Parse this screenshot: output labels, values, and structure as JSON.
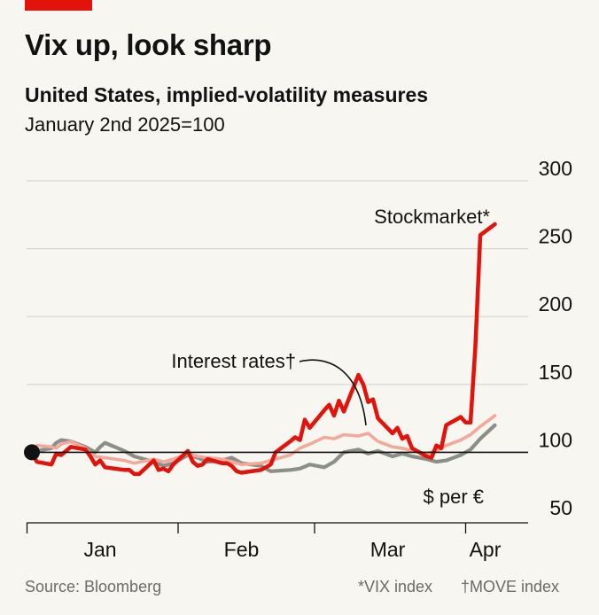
{
  "header": {
    "title": "Vix up, look sharp",
    "subtitle": "United States, implied-volatility measures",
    "index_note": "January 2nd 2025=100"
  },
  "footer": {
    "source": "Source: Bloomberg",
    "note_vix": "*VIX index",
    "note_move": "†MOVE index"
  },
  "colors": {
    "stockmarket": "#e3120b",
    "interest_rates": "#f4a899",
    "dollar_per_euro": "#8a9087",
    "baseline": "#121212",
    "gridline": "#d6d6d0",
    "brand_tag": "#e3120b"
  },
  "chart_data": {
    "type": "line",
    "xlabel": "",
    "ylabel": "",
    "x_tick_labels": [
      "Jan",
      "Feb",
      "Mar",
      "Apr"
    ],
    "x_range": [
      "2025-01-02",
      "2025-04-08"
    ],
    "ylim": [
      50,
      300
    ],
    "yticks": [
      50,
      100,
      150,
      200,
      250,
      300
    ],
    "y_axis_side": "right",
    "grid": true,
    "baseline_value": 100,
    "start_marker_value": 100,
    "series": [
      {
        "name": "Stockmarket*",
        "color": "#e3120b",
        "points": [
          [
            "2025-01-02",
            100
          ],
          [
            "2025-01-03",
            93
          ],
          [
            "2025-01-06",
            91
          ],
          [
            "2025-01-07",
            99
          ],
          [
            "2025-01-08",
            98
          ],
          [
            "2025-01-10",
            104
          ],
          [
            "2025-01-13",
            102
          ],
          [
            "2025-01-14",
            97
          ],
          [
            "2025-01-15",
            91
          ],
          [
            "2025-01-16",
            94
          ],
          [
            "2025-01-17",
            89
          ],
          [
            "2025-01-21",
            87
          ],
          [
            "2025-01-22",
            87
          ],
          [
            "2025-01-23",
            84
          ],
          [
            "2025-01-24",
            84
          ],
          [
            "2025-01-27",
            94
          ],
          [
            "2025-01-28",
            87
          ],
          [
            "2025-01-29",
            88
          ],
          [
            "2025-01-30",
            86
          ],
          [
            "2025-01-31",
            91
          ],
          [
            "2025-02-03",
            101
          ],
          [
            "2025-02-04",
            93
          ],
          [
            "2025-02-05",
            90
          ],
          [
            "2025-02-06",
            91
          ],
          [
            "2025-02-07",
            95
          ],
          [
            "2025-02-10",
            92
          ],
          [
            "2025-02-11",
            92
          ],
          [
            "2025-02-12",
            90
          ],
          [
            "2025-02-13",
            86
          ],
          [
            "2025-02-14",
            85
          ],
          [
            "2025-02-18",
            87
          ],
          [
            "2025-02-19",
            89
          ],
          [
            "2025-02-20",
            91
          ],
          [
            "2025-02-21",
            100
          ],
          [
            "2025-02-24",
            108
          ],
          [
            "2025-02-25",
            111
          ],
          [
            "2025-02-26",
            109
          ],
          [
            "2025-02-27",
            124
          ],
          [
            "2025-02-28",
            118
          ],
          [
            "2025-03-03",
            131
          ],
          [
            "2025-03-04",
            135
          ],
          [
            "2025-03-05",
            127
          ],
          [
            "2025-03-06",
            138
          ],
          [
            "2025-03-07",
            130
          ],
          [
            "2025-03-10",
            157
          ],
          [
            "2025-03-11",
            150
          ],
          [
            "2025-03-12",
            137
          ],
          [
            "2025-03-13,",
            139
          ],
          [
            "2025-03-14",
            125
          ],
          [
            "2025-03-17",
            114
          ],
          [
            "2025-03-18",
            118
          ],
          [
            "2025-03-19",
            110
          ],
          [
            "2025-03-20",
            112
          ],
          [
            "2025-03-21",
            103
          ],
          [
            "2025-03-24",
            97
          ],
          [
            "2025-03-25",
            96
          ],
          [
            "2025-03-26",
            105
          ],
          [
            "2025-03-27",
            103
          ],
          [
            "2025-03-28",
            120
          ],
          [
            "2025-03-31",
            126
          ],
          [
            "2025-04-01",
            122
          ],
          [
            "2025-04-02",
            122
          ],
          [
            "2025-04-03",
            178
          ],
          [
            "2025-04-04",
            260
          ],
          [
            "2025-04-07",
            268
          ]
        ]
      },
      {
        "name": "Interest rates†",
        "color": "#f4a899",
        "points": [
          [
            "2025-01-02",
            100
          ],
          [
            "2025-01-03",
            105
          ],
          [
            "2025-01-06",
            104
          ],
          [
            "2025-01-07",
            103
          ],
          [
            "2025-01-08",
            106
          ],
          [
            "2025-01-10",
            108
          ],
          [
            "2025-01-13",
            103
          ],
          [
            "2025-01-14",
            99
          ],
          [
            "2025-01-15",
            97
          ],
          [
            "2025-01-17",
            96
          ],
          [
            "2025-01-21",
            94
          ],
          [
            "2025-01-23",
            92
          ],
          [
            "2025-01-27",
            95
          ],
          [
            "2025-01-29",
            93
          ],
          [
            "2025-01-31",
            95
          ],
          [
            "2025-02-03",
            99
          ],
          [
            "2025-02-05",
            97
          ],
          [
            "2025-02-07",
            96
          ],
          [
            "2025-02-10",
            95
          ],
          [
            "2025-02-12",
            93
          ],
          [
            "2025-02-14",
            91
          ],
          [
            "2025-02-18",
            92
          ],
          [
            "2025-02-20",
            94
          ],
          [
            "2025-02-24",
            98
          ],
          [
            "2025-02-26",
            103
          ],
          [
            "2025-02-28",
            106
          ],
          [
            "2025-03-03",
            111
          ],
          [
            "2025-03-05",
            110
          ],
          [
            "2025-03-07",
            113
          ],
          [
            "2025-03-10",
            112
          ],
          [
            "2025-03-12",
            114
          ],
          [
            "2025-03-14",
            108
          ],
          [
            "2025-03-17",
            104
          ],
          [
            "2025-03-19",
            103
          ],
          [
            "2025-03-21",
            101
          ],
          [
            "2025-03-24",
            99
          ],
          [
            "2025-03-26",
            101
          ],
          [
            "2025-03-28",
            105
          ],
          [
            "2025-03-31",
            109
          ],
          [
            "2025-04-02",
            113
          ],
          [
            "2025-04-04",
            119
          ],
          [
            "2025-04-07",
            127
          ]
        ]
      },
      {
        "name": "$ per €",
        "color": "#8a9087",
        "points": [
          [
            "2025-01-02",
            100
          ],
          [
            "2025-01-03",
            101
          ],
          [
            "2025-01-06",
            103
          ],
          [
            "2025-01-07",
            107
          ],
          [
            "2025-01-08",
            109
          ],
          [
            "2025-01-10",
            108
          ],
          [
            "2025-01-13",
            104
          ],
          [
            "2025-01-14",
            102
          ],
          [
            "2025-01-15",
            100
          ],
          [
            "2025-01-16",
            104
          ],
          [
            "2025-01-17",
            107
          ],
          [
            "2025-01-21",
            101
          ],
          [
            "2025-01-23",
            97
          ],
          [
            "2025-01-27",
            93
          ],
          [
            "2025-01-29",
            90
          ],
          [
            "2025-01-31",
            92
          ],
          [
            "2025-02-03",
            98
          ],
          [
            "2025-02-05",
            96
          ],
          [
            "2025-02-07",
            93
          ],
          [
            "2025-02-10",
            94
          ],
          [
            "2025-02-12",
            96
          ],
          [
            "2025-02-14",
            92
          ],
          [
            "2025-02-18",
            90
          ],
          [
            "2025-02-20",
            86
          ],
          [
            "2025-02-24",
            87
          ],
          [
            "2025-02-26",
            88
          ],
          [
            "2025-02-28",
            91
          ],
          [
            "2025-03-03",
            89
          ],
          [
            "2025-03-05",
            93
          ],
          [
            "2025-03-07",
            100
          ],
          [
            "2025-03-10",
            102
          ],
          [
            "2025-03-12",
            99
          ],
          [
            "2025-03-14",
            101
          ],
          [
            "2025-03-17",
            97
          ],
          [
            "2025-03-19",
            99
          ],
          [
            "2025-03-21",
            97
          ],
          [
            "2025-03-24",
            95
          ],
          [
            "2025-03-26",
            93
          ],
          [
            "2025-03-28",
            94
          ],
          [
            "2025-03-31",
            98
          ],
          [
            "2025-04-02",
            102
          ],
          [
            "2025-04-04",
            110
          ],
          [
            "2025-04-07",
            120
          ]
        ]
      }
    ]
  }
}
